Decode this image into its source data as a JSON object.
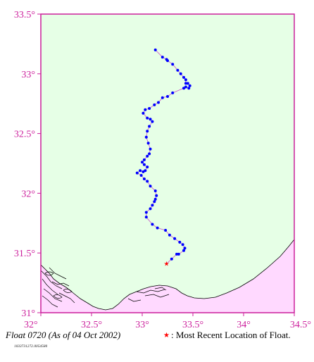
{
  "map": {
    "lon_range": [
      32.0,
      34.5
    ],
    "lat_range": [
      31.0,
      33.5
    ],
    "x_ticks": [
      {
        "value": 32.0,
        "label": "32°"
      },
      {
        "value": 32.5,
        "label": "32.5°"
      },
      {
        "value": 33.0,
        "label": "33°"
      },
      {
        "value": 33.5,
        "label": "33.5°"
      },
      {
        "value": 34.0,
        "label": "34°"
      },
      {
        "value": 34.5,
        "label": "34.5°"
      }
    ],
    "y_ticks": [
      {
        "value": 31.0,
        "label": "31°"
      },
      {
        "value": 31.5,
        "label": "31.5°"
      },
      {
        "value": 32.0,
        "label": "32°"
      },
      {
        "value": 32.5,
        "label": "32.5°"
      },
      {
        "value": 33.0,
        "label": "33°"
      },
      {
        "value": 33.5,
        "label": "33.5°"
      }
    ],
    "colors": {
      "sea": "#e6ffe6",
      "land": "#ffd9ff",
      "frame": "#cc1f9c",
      "track_line": "#cc66cc",
      "track_point": "#0000ff",
      "recent": "#ff0000",
      "coast": "#000000"
    },
    "track": [
      [
        33.13,
        33.2
      ],
      [
        33.2,
        33.14
      ],
      [
        33.24,
        33.12
      ],
      [
        33.25,
        33.11
      ],
      [
        33.3,
        33.08
      ],
      [
        33.35,
        33.03
      ],
      [
        33.38,
        33.0
      ],
      [
        33.41,
        32.97
      ],
      [
        33.43,
        32.95
      ],
      [
        33.43,
        32.92
      ],
      [
        33.45,
        32.92
      ],
      [
        33.47,
        32.9
      ],
      [
        33.46,
        32.88
      ],
      [
        33.43,
        32.89
      ],
      [
        33.41,
        32.88
      ],
      [
        33.3,
        32.84
      ],
      [
        33.25,
        32.81
      ],
      [
        33.2,
        32.8
      ],
      [
        33.16,
        32.76
      ],
      [
        33.12,
        32.74
      ],
      [
        33.07,
        32.71
      ],
      [
        33.03,
        32.7
      ],
      [
        33.01,
        32.67
      ],
      [
        33.05,
        32.63
      ],
      [
        33.08,
        32.62
      ],
      [
        33.1,
        32.6
      ],
      [
        33.07,
        32.56
      ],
      [
        33.05,
        32.52
      ],
      [
        33.04,
        32.47
      ],
      [
        33.06,
        32.42
      ],
      [
        33.08,
        32.37
      ],
      [
        33.07,
        32.33
      ],
      [
        33.05,
        32.31
      ],
      [
        33.02,
        32.28
      ],
      [
        33.0,
        32.26
      ],
      [
        33.02,
        32.24
      ],
      [
        33.05,
        32.22
      ],
      [
        33.03,
        32.19
      ],
      [
        33.01,
        32.18
      ],
      [
        32.98,
        32.19
      ],
      [
        32.95,
        32.17
      ],
      [
        32.99,
        32.15
      ],
      [
        33.02,
        32.12
      ],
      [
        33.05,
        32.1
      ],
      [
        33.08,
        32.06
      ],
      [
        33.13,
        32.02
      ],
      [
        33.14,
        31.98
      ],
      [
        33.13,
        31.95
      ],
      [
        33.12,
        31.93
      ],
      [
        33.1,
        31.9
      ],
      [
        33.08,
        31.87
      ],
      [
        33.04,
        31.84
      ],
      [
        33.04,
        31.8
      ],
      [
        33.1,
        31.74
      ],
      [
        33.15,
        31.71
      ],
      [
        33.23,
        31.69
      ],
      [
        33.27,
        31.65
      ],
      [
        33.32,
        31.62
      ],
      [
        33.37,
        31.59
      ],
      [
        33.4,
        31.57
      ],
      [
        33.42,
        31.54
      ],
      [
        33.41,
        31.52
      ],
      [
        33.36,
        31.49
      ],
      [
        33.34,
        31.49
      ],
      [
        33.29,
        31.45
      ],
      [
        33.24,
        31.41
      ]
    ],
    "recent_position": [
      33.24,
      31.41
    ]
  },
  "caption": {
    "float_title": "Float 0720 (As of 04 Oct 2002)",
    "legend_star": "★",
    "legend_text": ": Most Recent Location of Float.",
    "small_id": "1033731272.0054580"
  }
}
